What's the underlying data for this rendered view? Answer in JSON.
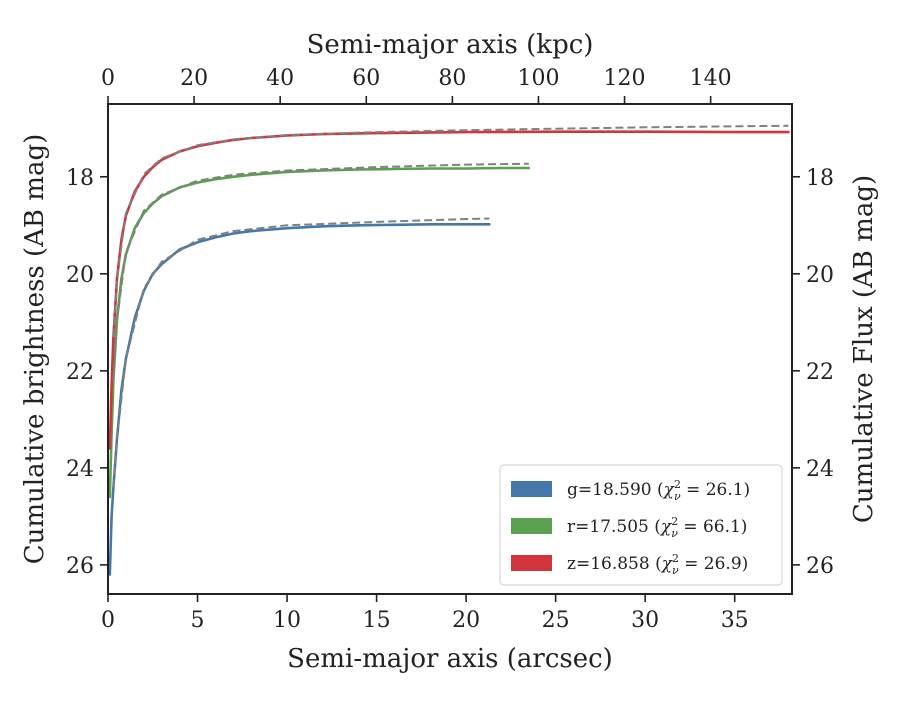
{
  "chart_data": {
    "type": "line",
    "title": "",
    "xlabel": "Semi-major axis (arcsec)",
    "ylabel": "Cumulative brightness (AB mag)",
    "x2label": "Semi-major axis (kpc)",
    "y2label": "Cumulative Flux (AB mag)",
    "xlim": [
      0,
      38.2
    ],
    "ylim": [
      26.6,
      16.5
    ],
    "y_inverted": true,
    "x2lim": [
      0,
      158.9
    ],
    "xticks": [
      "0",
      "5",
      "10",
      "15",
      "20",
      "25",
      "30",
      "35"
    ],
    "x2ticks": [
      "0",
      "20",
      "40",
      "60",
      "80",
      "100",
      "120",
      "140"
    ],
    "yticks": [
      "18",
      "20",
      "22",
      "24",
      "26"
    ],
    "y2ticks": [
      "18",
      "20",
      "22",
      "24",
      "26"
    ],
    "grid": false,
    "legend_position": "lower-right",
    "colors": {
      "g": "#4477aa",
      "r": "#59a14f",
      "z": "#d1343a",
      "model": "#808080"
    },
    "series": [
      {
        "name": "g=18.590 (χ²ν = 26.1)",
        "band": "g",
        "legend_main": "g=18.590 (",
        "legend_chi": "χ",
        "legend_sup": "2",
        "legend_sub": "ν",
        "legend_val": " = 26.1)",
        "color": "#4477aa",
        "x": [
          0.1,
          0.2,
          0.3,
          0.5,
          0.75,
          1,
          1.5,
          2,
          2.5,
          3,
          4,
          5,
          6,
          7,
          8,
          10,
          12,
          14,
          16,
          18,
          20,
          21.3
        ],
        "y": [
          26.2,
          25.0,
          24.4,
          23.4,
          22.4,
          21.75,
          20.9,
          20.35,
          20.0,
          19.8,
          19.5,
          19.35,
          19.25,
          19.17,
          19.12,
          19.06,
          19.02,
          19.0,
          18.99,
          18.98,
          18.98,
          18.98
        ],
        "model_x": [
          0.3,
          0.5,
          1,
          2,
          3,
          5,
          7,
          10,
          15,
          20,
          21.3
        ],
        "model_y": [
          24.4,
          23.4,
          21.75,
          20.3,
          19.75,
          19.3,
          19.12,
          19.0,
          18.93,
          18.87,
          18.86
        ]
      },
      {
        "name": "r=17.505 (χ²ν = 66.1)",
        "band": "r",
        "legend_main": "r=17.505 (",
        "legend_chi": "χ",
        "legend_sup": "2",
        "legend_sub": "ν",
        "legend_val": " = 66.1)",
        "color": "#59a14f",
        "x": [
          0.1,
          0.2,
          0.3,
          0.5,
          0.75,
          1,
          1.5,
          2,
          2.5,
          3,
          4,
          5,
          6,
          7,
          8,
          10,
          12,
          14,
          16,
          18,
          20,
          22,
          23.5
        ],
        "y": [
          24.6,
          23.3,
          22.2,
          20.95,
          20.1,
          19.6,
          19.05,
          18.75,
          18.55,
          18.4,
          18.22,
          18.12,
          18.05,
          18.0,
          17.96,
          17.9,
          17.87,
          17.85,
          17.84,
          17.83,
          17.83,
          17.82,
          17.82
        ],
        "model_x": [
          0.3,
          0.5,
          1,
          2,
          3,
          5,
          7,
          10,
          15,
          20,
          23.5
        ],
        "model_y": [
          22.2,
          20.95,
          19.55,
          18.7,
          18.37,
          18.08,
          17.96,
          17.87,
          17.8,
          17.75,
          17.73
        ]
      },
      {
        "name": "z=16.858 (χ²ν = 26.9)",
        "band": "z",
        "legend_main": "z=16.858 (",
        "legend_chi": "χ",
        "legend_sup": "2",
        "legend_sub": "ν",
        "legend_val": " = 26.9)",
        "color": "#d1343a",
        "x": [
          0.1,
          0.2,
          0.3,
          0.5,
          0.75,
          1,
          1.5,
          2,
          2.5,
          3,
          4,
          5,
          6,
          7,
          8,
          10,
          12,
          15,
          20,
          25,
          30,
          35,
          38
        ],
        "y": [
          23.6,
          22.3,
          21.3,
          20.1,
          19.3,
          18.8,
          18.3,
          18.0,
          17.8,
          17.65,
          17.48,
          17.37,
          17.3,
          17.24,
          17.2,
          17.15,
          17.12,
          17.1,
          17.08,
          17.07,
          17.07,
          17.08,
          17.08
        ],
        "model_x": [
          0.3,
          0.5,
          1,
          2,
          3,
          5,
          7,
          10,
          15,
          20,
          25,
          30,
          35,
          38
        ],
        "model_y": [
          21.3,
          20.1,
          18.75,
          17.95,
          17.62,
          17.35,
          17.23,
          17.14,
          17.08,
          17.04,
          17.01,
          16.98,
          16.96,
          16.95
        ]
      }
    ]
  }
}
